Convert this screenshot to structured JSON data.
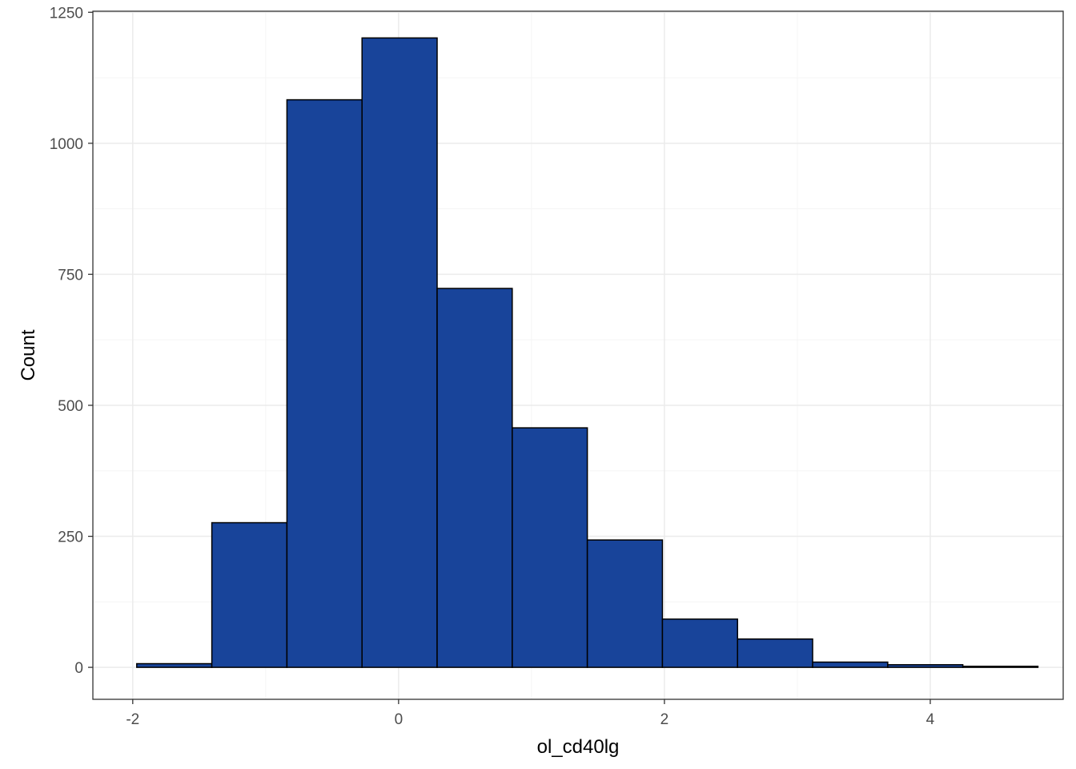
{
  "chart_data": {
    "type": "bar",
    "subtype": "histogram",
    "title": "",
    "xlabel": "ol_cd40lg",
    "ylabel": "Count",
    "xlim": [
      -2.3,
      5.0
    ],
    "ylim": [
      -61,
      1252
    ],
    "x_ticks": [
      -2,
      0,
      2,
      4
    ],
    "x_tick_labels": [
      "-2",
      "0",
      "2",
      "4"
    ],
    "y_ticks": [
      0,
      250,
      500,
      750,
      1000,
      1250
    ],
    "y_tick_labels": [
      "0",
      "250",
      "500",
      "750",
      "1000",
      "1250"
    ],
    "grid": true,
    "legend": "none",
    "bin_edges": [
      -1.97,
      -1.405,
      -0.84,
      -0.275,
      0.29,
      0.855,
      1.42,
      1.985,
      2.55,
      3.115,
      3.68,
      4.245,
      4.81
    ],
    "values": [
      7,
      276,
      1083,
      1201,
      723,
      457,
      243,
      92,
      54,
      10,
      5,
      2
    ],
    "colors": {
      "bar_fill": "#18449A",
      "bar_stroke": "#000000",
      "panel_border": "#333333",
      "grid_major": "#EBEBEB",
      "grid_minor": "#F5F5F5",
      "tick_text": "#4D4D4D"
    }
  }
}
